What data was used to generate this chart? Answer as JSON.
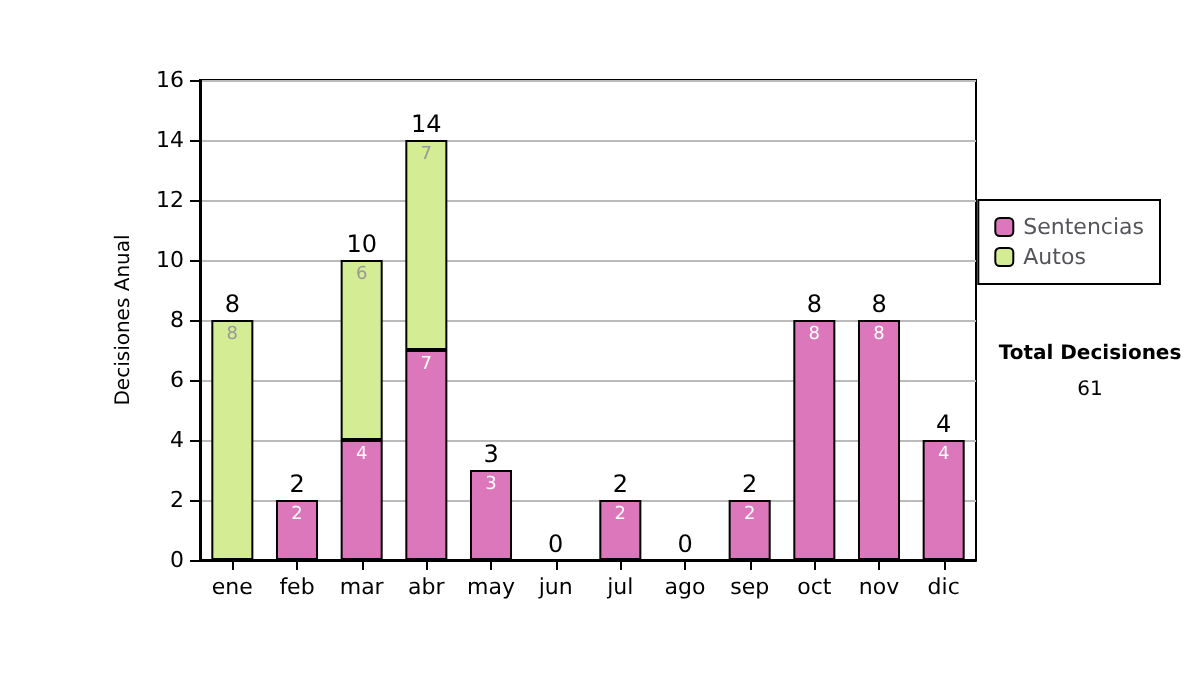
{
  "chart_data": {
    "type": "bar",
    "stacked": true,
    "ylabel": "Decisiones Anual",
    "categories": [
      "ene",
      "feb",
      "mar",
      "abr",
      "may",
      "jun",
      "jul",
      "ago",
      "sep",
      "oct",
      "nov",
      "dic"
    ],
    "series": [
      {
        "name": "Sentencias",
        "color": "#dd77bb",
        "values": [
          0,
          2,
          4,
          7,
          3,
          0,
          2,
          0,
          2,
          8,
          8,
          4
        ],
        "value_labels": [
          null,
          "2",
          "4",
          "7",
          "3",
          null,
          "2",
          null,
          "2",
          "8",
          "8",
          "4"
        ]
      },
      {
        "name": "Autos",
        "color": "#d4ec94",
        "values": [
          8,
          0,
          6,
          7,
          0,
          0,
          0,
          0,
          0,
          0,
          0,
          0
        ],
        "value_labels": [
          "8",
          null,
          "6",
          "7",
          null,
          null,
          null,
          null,
          null,
          null,
          null,
          null
        ]
      }
    ],
    "totals": [
      "8",
      "2",
      "10",
      "14",
      "3",
      "0",
      "2",
      "0",
      "2",
      "8",
      "8",
      "4"
    ],
    "ylim": [
      0,
      16
    ],
    "yticks": [
      0,
      2,
      4,
      6,
      8,
      10,
      12,
      14,
      16
    ],
    "grid": "y",
    "legend": "right",
    "annotations": [
      "Total Decisiones",
      "61"
    ]
  }
}
